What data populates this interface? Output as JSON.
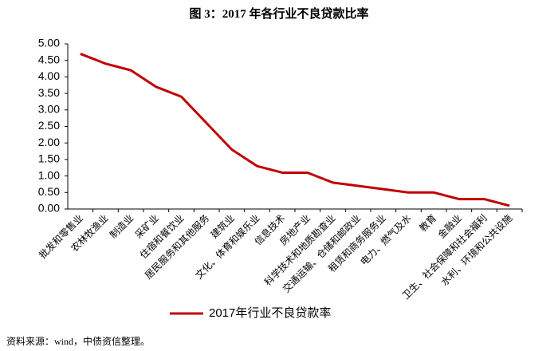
{
  "chart_data": {
    "type": "line",
    "title": "图 3：2017 年各行业不良贷款比率",
    "source": "资料来源：wind，中债资信整理。",
    "categories": [
      "批发和零售业",
      "农林牧渔业",
      "制造业",
      "采矿业",
      "住宿和餐饮业",
      "居民服务和其他服务",
      "建筑业",
      "文化、体育和娱乐业",
      "信息技术",
      "房地产业",
      "科学技术和地质勘查业",
      "交通运输、仓储和邮政业",
      "租赁和商务服务业",
      "电力、燃气及水",
      "教育",
      "金融业",
      "卫生、社会保障和社会福利",
      "水利、环境和公共设施"
    ],
    "series": [
      {
        "name": "2017年行业不良贷款率",
        "color": "#c00000",
        "values": [
          4.7,
          4.4,
          4.2,
          3.7,
          3.4,
          2.6,
          1.8,
          1.3,
          1.1,
          1.1,
          0.8,
          0.7,
          0.6,
          0.5,
          0.5,
          0.3,
          0.3,
          0.1
        ]
      }
    ],
    "ylim": [
      0,
      5
    ],
    "yticks": [
      {
        "value": 0,
        "label": "0.00"
      },
      {
        "value": 0.5,
        "label": "0.50"
      },
      {
        "value": 1,
        "label": "1.00"
      },
      {
        "value": 1.5,
        "label": "1.50"
      },
      {
        "value": 2,
        "label": "2.00"
      },
      {
        "value": 2.5,
        "label": "2.50"
      },
      {
        "value": 3,
        "label": "3.00"
      },
      {
        "value": 3.5,
        "label": "3.50"
      },
      {
        "value": 4,
        "label": "4.00"
      },
      {
        "value": 4.5,
        "label": "4.50"
      },
      {
        "value": 5,
        "label": "5.00"
      }
    ],
    "legend": "bottom"
  }
}
